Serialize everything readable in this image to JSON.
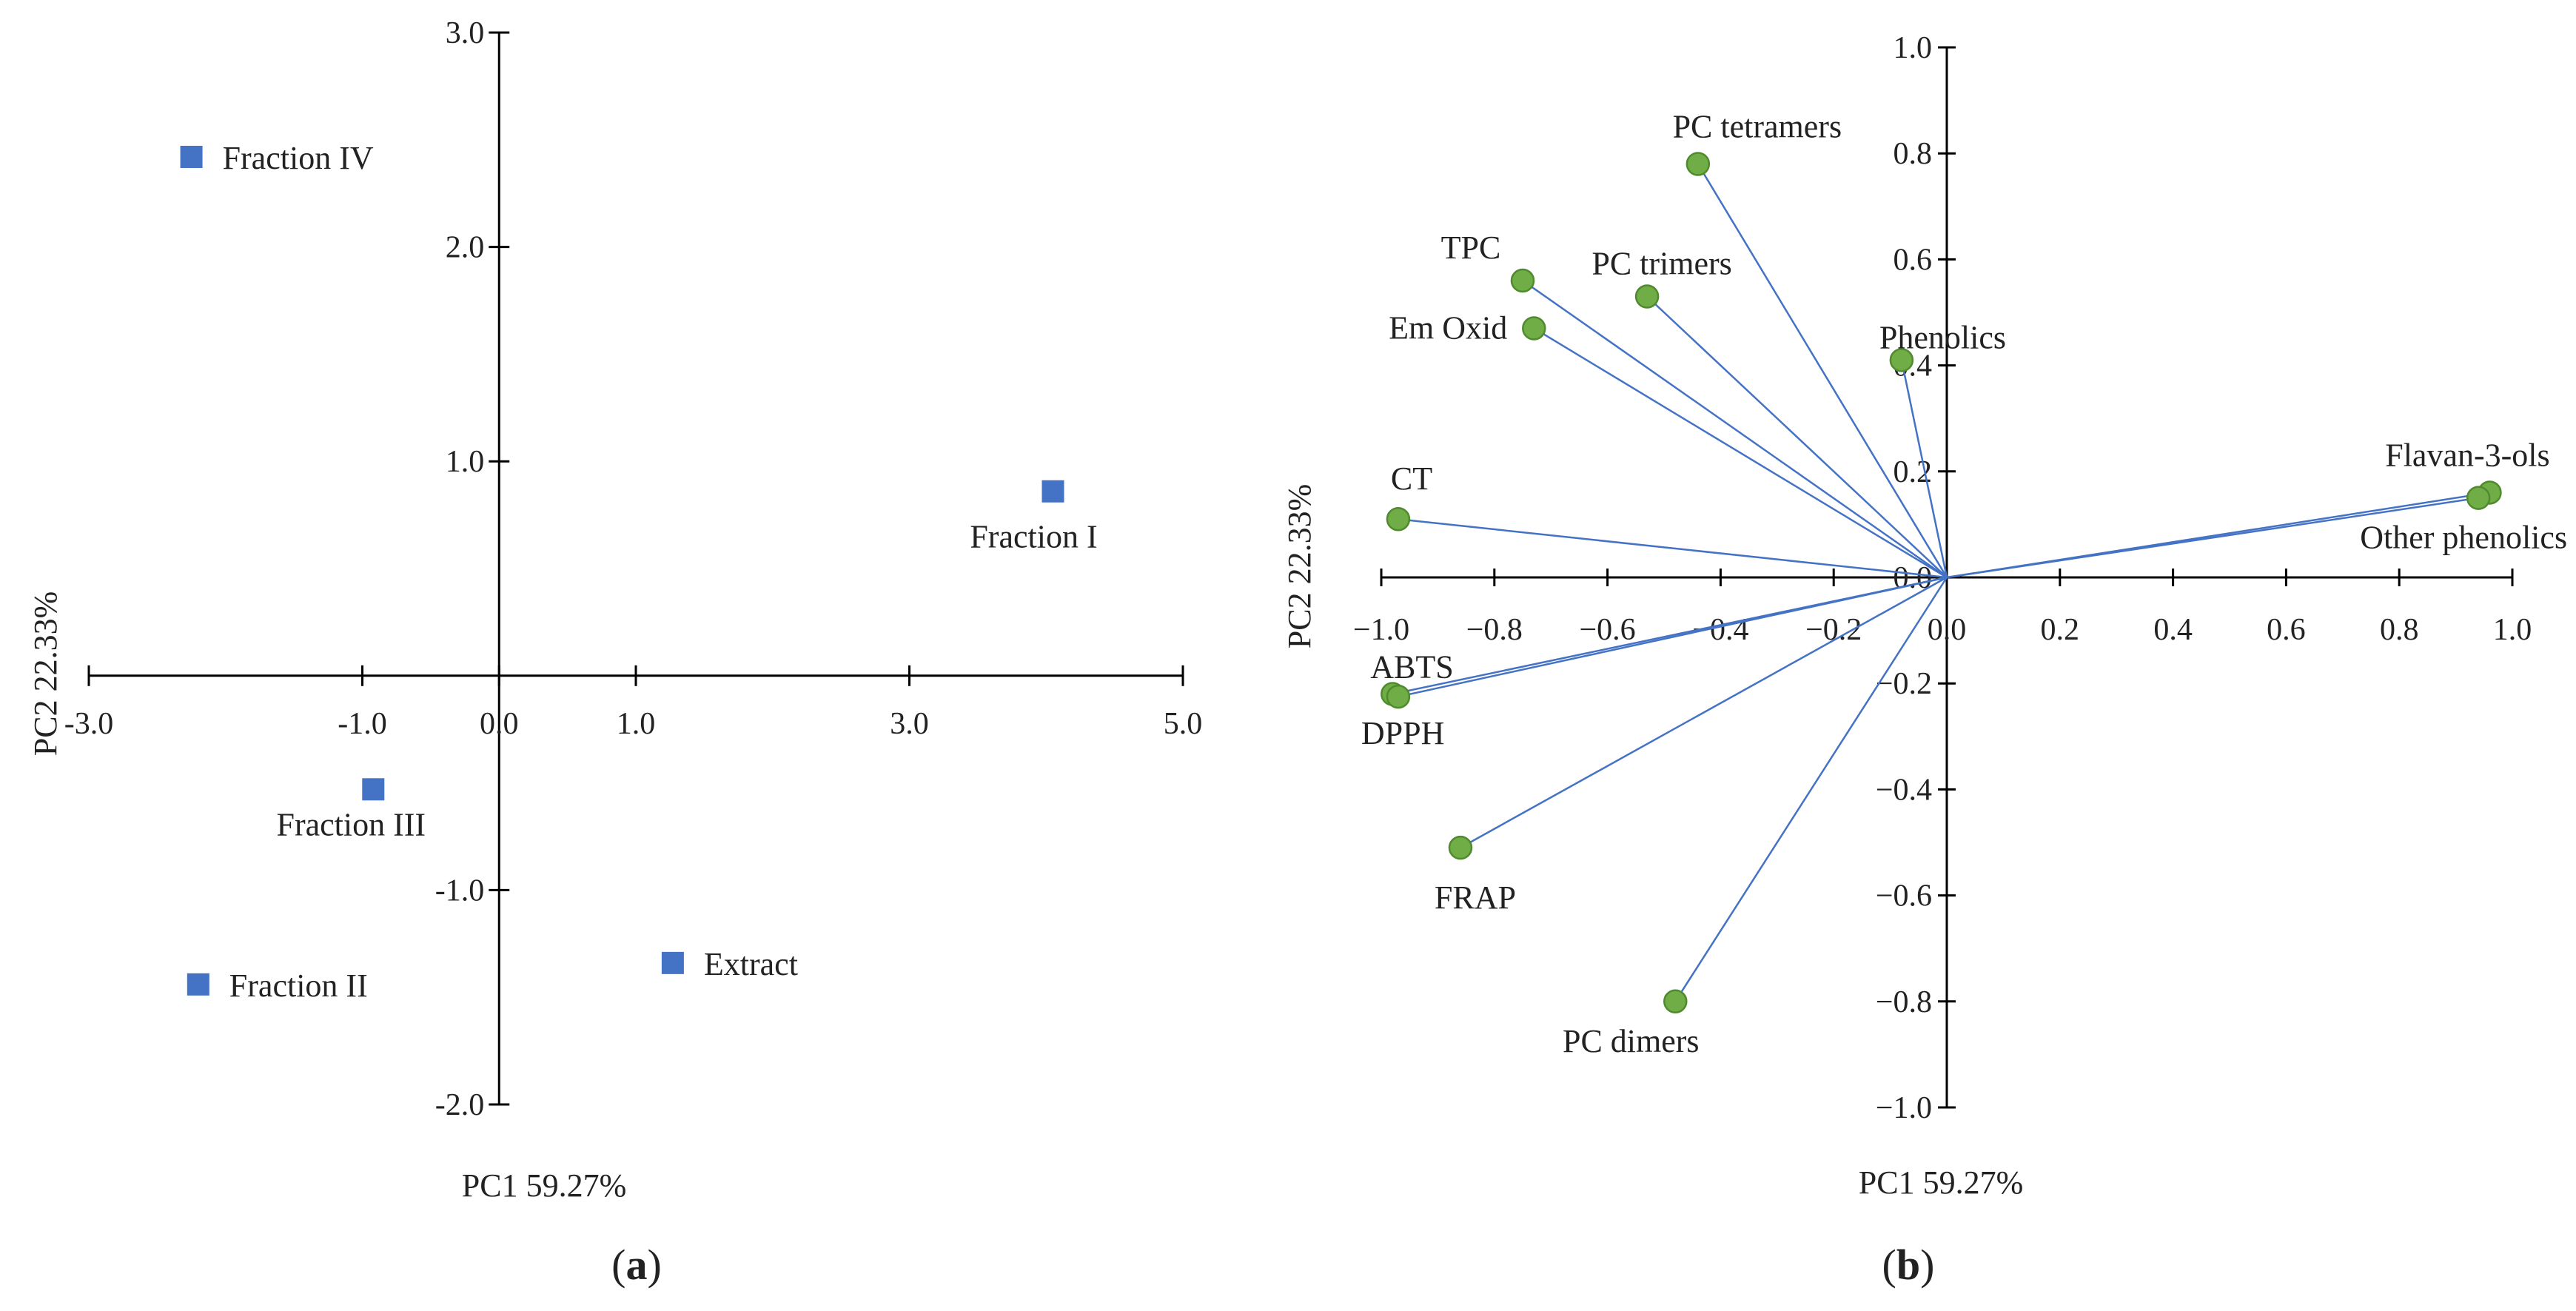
{
  "chart_data": [
    {
      "type": "scatter",
      "panel_label": "a",
      "xlabel": "PC1 59.27%",
      "ylabel": "PC2 22.33%",
      "xlim": [
        -3.0,
        5.0
      ],
      "ylim": [
        -2.0,
        3.0
      ],
      "x_ticks": [
        -3.0,
        -1.0,
        0.0,
        1.0,
        3.0,
        5.0
      ],
      "x_tick_labels": [
        "-3.0",
        "-1.0",
        "0.0",
        "1.0",
        "3.0",
        "5.0"
      ],
      "y_ticks": [
        -2.0,
        -1.0,
        1.0,
        2.0,
        3.0
      ],
      "y_tick_labels": [
        "-2.0",
        "-1.0",
        "1.0",
        "2.0",
        "3.0"
      ],
      "grid": false,
      "marker_color": "#4472c4",
      "points": [
        {
          "name": "Fraction IV",
          "x": -2.25,
          "y": 2.42
        },
        {
          "name": "Fraction I",
          "x": 4.05,
          "y": 0.86
        },
        {
          "name": "Fraction III",
          "x": -0.92,
          "y": -0.53
        },
        {
          "name": "Fraction II",
          "x": -2.2,
          "y": -1.44
        },
        {
          "name": "Extract",
          "x": 1.27,
          "y": -1.34
        }
      ]
    },
    {
      "type": "scatter",
      "panel_label": "b",
      "xlabel": "PC1 59.27%",
      "ylabel": "PC2 22.33%",
      "xlim": [
        -1.0,
        1.0
      ],
      "ylim": [
        -1.0,
        1.0
      ],
      "x_ticks": [
        -1.0,
        -0.8,
        -0.6,
        -0.4,
        -0.2,
        0.0,
        0.2,
        0.4,
        0.6,
        0.8,
        1.0
      ],
      "x_tick_labels": [
        "−1.0",
        "−0.8",
        "−0.6",
        "−0.4",
        "−0.2",
        "0.0",
        "0.2",
        "0.4",
        "0.6",
        "0.8",
        "1.0"
      ],
      "y_ticks": [
        -1.0,
        -0.8,
        -0.6,
        -0.4,
        -0.2,
        0.0,
        0.2,
        0.4,
        0.6,
        0.8,
        1.0
      ],
      "y_tick_labels": [
        "−1.0",
        "−0.8",
        "−0.6",
        "−0.4",
        "−0.2",
        "0.0",
        "0.2",
        "0.4",
        "0.6",
        "0.8",
        "1.0"
      ],
      "grid": false,
      "marker_color": "#70ad47",
      "vector_color": "#4472c4",
      "points": [
        {
          "name": "PC tetramers",
          "x": -0.44,
          "y": 0.78
        },
        {
          "name": "TPC",
          "x": -0.75,
          "y": 0.56
        },
        {
          "name": "PC trimers",
          "x": -0.53,
          "y": 0.53
        },
        {
          "name": "Em Oxid",
          "x": -0.73,
          "y": 0.47
        },
        {
          "name": "Phenolics",
          "x": -0.08,
          "y": 0.41
        },
        {
          "name": "CT",
          "x": -0.97,
          "y": 0.11
        },
        {
          "name": "Flavan-3-ols",
          "x": 0.96,
          "y": 0.16
        },
        {
          "name": "Other phenolics",
          "x": 0.94,
          "y": 0.15
        },
        {
          "name": "ABTS",
          "x": -0.98,
          "y": -0.22
        },
        {
          "name": "DPPH",
          "x": -0.97,
          "y": -0.225
        },
        {
          "name": "FRAP",
          "x": -0.86,
          "y": -0.51
        },
        {
          "name": "PC dimers",
          "x": -0.48,
          "y": -0.8
        }
      ]
    }
  ]
}
